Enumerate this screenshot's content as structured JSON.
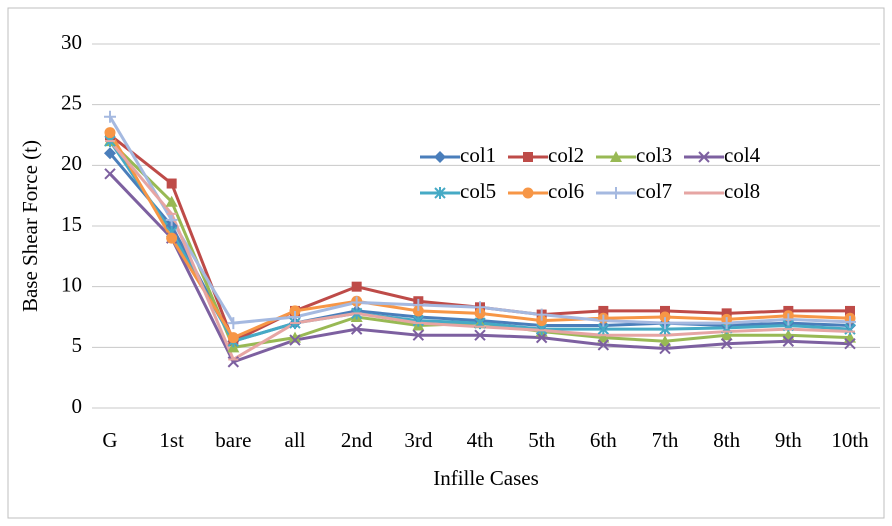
{
  "chart_data": {
    "type": "line",
    "xlabel": "Infille Cases",
    "ylabel": "Base Shear Force (t)",
    "categories": [
      "G",
      "1st",
      "bare",
      "all",
      "2nd",
      "3rd",
      "4th",
      "5th",
      "6th",
      "7th",
      "8th",
      "9th",
      "10th"
    ],
    "ylim": [
      0,
      30
    ],
    "yticks": [
      0,
      5,
      10,
      15,
      20,
      25,
      30
    ],
    "grid": true,
    "series": [
      {
        "name": "col1",
        "color": "#4a7ebb",
        "marker": "diamond",
        "values": [
          21,
          15,
          5.5,
          7,
          8,
          7.5,
          7.2,
          6.8,
          6.8,
          7,
          6.8,
          7,
          6.8
        ]
      },
      {
        "name": "col2",
        "color": "#be4b48",
        "marker": "square",
        "values": [
          22.5,
          18.5,
          5.5,
          8,
          10,
          8.8,
          8.3,
          7.7,
          8,
          8,
          7.8,
          8,
          8
        ]
      },
      {
        "name": "col3",
        "color": "#98b954",
        "marker": "triangle",
        "values": [
          22,
          17,
          5,
          5.8,
          7.5,
          6.8,
          7,
          6.3,
          5.8,
          5.5,
          6,
          6,
          5.8
        ]
      },
      {
        "name": "col4",
        "color": "#7d60a0",
        "marker": "x",
        "values": [
          19.3,
          14,
          3.8,
          5.6,
          6.5,
          6,
          6,
          5.8,
          5.2,
          4.9,
          5.3,
          5.5,
          5.3
        ]
      },
      {
        "name": "col5",
        "color": "#46aac5",
        "marker": "star",
        "values": [
          22,
          14.5,
          5.5,
          7,
          7.8,
          7.2,
          7,
          6.5,
          6.5,
          6.5,
          6.6,
          6.8,
          6.5
        ]
      },
      {
        "name": "col6",
        "color": "#f79646",
        "marker": "circle",
        "values": [
          22.7,
          14,
          5.8,
          8,
          8.8,
          8,
          7.8,
          7.2,
          7.4,
          7.5,
          7.3,
          7.6,
          7.4
        ]
      },
      {
        "name": "col7",
        "color": "#a5b9e0",
        "marker": "plus",
        "values": [
          24,
          15.5,
          7,
          7.5,
          8.7,
          8.5,
          8.3,
          7.7,
          7.2,
          7,
          7,
          7.3,
          7.1
        ]
      },
      {
        "name": "col8",
        "color": "#e6a5a3",
        "marker": "dash",
        "values": [
          22,
          16,
          4,
          7,
          7.8,
          7,
          6.7,
          6.4,
          6,
          6,
          6.3,
          6.5,
          6.3
        ]
      }
    ]
  }
}
